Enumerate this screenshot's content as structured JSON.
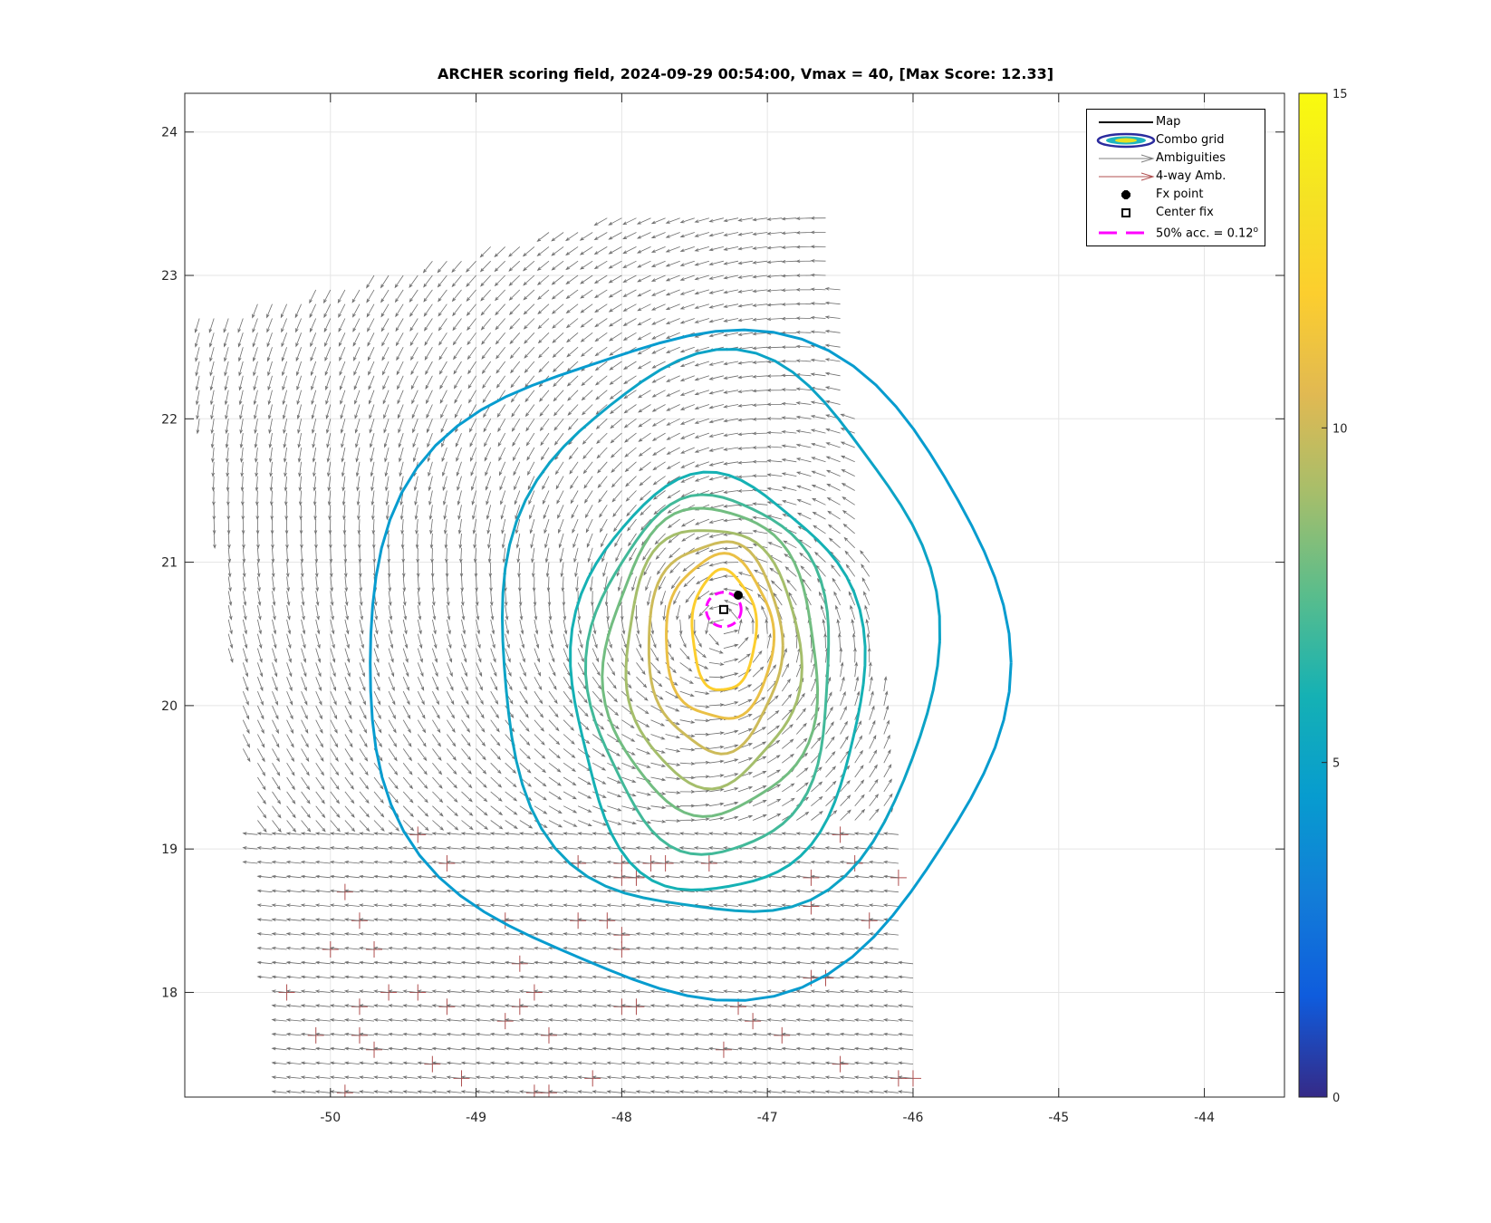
{
  "chart_data": {
    "type": "contour",
    "title": "ARCHER scoring field, 2024-09-29 00:54:00, Vmax = 40, [Max Score: 12.33]",
    "xlabel": "",
    "ylabel": "",
    "xlim": [
      -51.0,
      -43.45
    ],
    "ylim": [
      17.27,
      24.27
    ],
    "x_ticks": [
      -50,
      -49,
      -48,
      -47,
      -46,
      -45,
      -44
    ],
    "x_tick_labels": [
      "-50",
      "-49",
      "-48",
      "-47",
      "-46",
      "-45",
      "-44"
    ],
    "y_ticks": [
      18,
      19,
      20,
      21,
      22,
      23,
      24
    ],
    "y_tick_labels": [
      "18",
      "19",
      "20",
      "21",
      "22",
      "23",
      "24"
    ],
    "grid": true,
    "colorbar": {
      "min": 0,
      "max": 15,
      "ticks": [
        0,
        5,
        10,
        15
      ],
      "tick_labels": [
        "0",
        "5",
        "10",
        "15"
      ],
      "colormap": "parula"
    },
    "legend": {
      "placement": "top-right",
      "entries": [
        {
          "label": "Map",
          "symbol": "line",
          "color": "#000000"
        },
        {
          "label": "Combo grid",
          "symbol": "ellipse",
          "color": "#2b2b9e"
        },
        {
          "label": "Ambiguities",
          "symbol": "arrow",
          "color": "#808080"
        },
        {
          "label": "4-way Amb.",
          "symbol": "arrow",
          "color": "#b05050"
        },
        {
          "label": "Fx point",
          "symbol": "dot",
          "color": "#000000"
        },
        {
          "label": "Center fix",
          "symbol": "square",
          "color": "#000000"
        },
        {
          "label": "50% acc. = 0.12",
          "label_sup": "o",
          "symbol": "dashed",
          "color": "#ff00ff"
        }
      ]
    },
    "storm_center": {
      "lon": -47.3,
      "lat": 20.52
    },
    "fx_point": {
      "lon": -47.2,
      "lat": 20.77
    },
    "center_fix": {
      "lon": -47.3,
      "lat": 20.67
    },
    "acc_circle_radius_deg": 0.12,
    "max_score": 12.33,
    "contour_levels": [
      {
        "level": 12.0,
        "rx": 0.22,
        "ry": 0.42,
        "cx": -47.3,
        "cy": 20.52
      },
      {
        "level": 11.0,
        "rx": 0.37,
        "ry": 0.57,
        "cx": -47.33,
        "cy": 20.47
      },
      {
        "level": 10.0,
        "rx": 0.46,
        "ry": 0.73,
        "cx": -47.36,
        "cy": 20.42
      },
      {
        "level": 9.0,
        "rx": 0.6,
        "ry": 0.9,
        "cx": -47.38,
        "cy": 20.35
      },
      {
        "level": 8.0,
        "rx": 0.73,
        "ry": 1.07,
        "cx": -47.38,
        "cy": 20.3
      },
      {
        "level": 7.0,
        "rx": 0.83,
        "ry": 1.25,
        "cx": -47.38,
        "cy": 20.22
      },
      {
        "level": 6.0,
        "rx": 1.0,
        "ry": 1.45,
        "cx": -47.35,
        "cy": 20.15
      },
      {
        "level": 5.0,
        "rx": 1.5,
        "ry": 1.95,
        "cx": -47.35,
        "cy": 20.45
      },
      {
        "level": 4.5,
        "rx": 2.2,
        "ry": 2.3,
        "cx": -47.55,
        "cy": 20.3
      }
    ],
    "swath_corners": [
      [
        -51.0,
        22.7
      ],
      [
        -47.9,
        23.45
      ],
      [
        -46.55,
        23.45
      ],
      [
        -45.9,
        17.3
      ],
      [
        -50.3,
        17.3
      ]
    ],
    "arrow_spacing_deg": 0.1,
    "wind_field_center": {
      "lon": -47.3,
      "lat": 20.55
    }
  }
}
